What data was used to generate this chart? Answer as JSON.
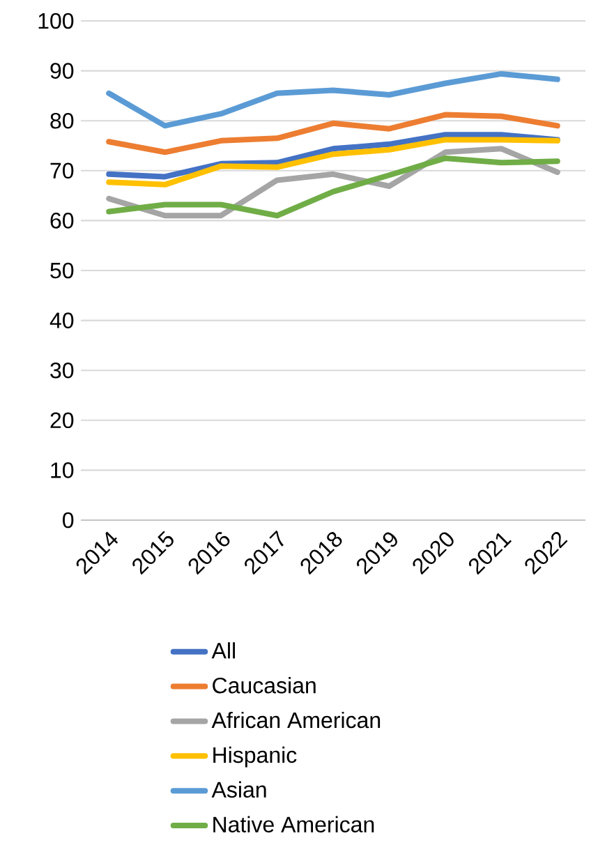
{
  "chart_data": {
    "type": "line",
    "categories": [
      "2014",
      "2015",
      "2016",
      "2017",
      "2018",
      "2019",
      "2020",
      "2021",
      "2022"
    ],
    "series": [
      {
        "name": "All",
        "color": "#4472c4",
        "values": [
          69.3,
          68.8,
          71.4,
          71.6,
          74.4,
          75.3,
          77.2,
          77.2,
          76.2
        ]
      },
      {
        "name": "Caucasian",
        "color": "#ed7d31",
        "values": [
          75.8,
          73.7,
          76.0,
          76.5,
          79.5,
          78.4,
          81.2,
          80.9,
          79.0
        ]
      },
      {
        "name": "African American",
        "color": "#a5a5a5",
        "values": [
          64.4,
          61.0,
          61.0,
          68.1,
          69.3,
          66.9,
          73.7,
          74.4,
          69.7
        ]
      },
      {
        "name": "Hispanic",
        "color": "#ffc000",
        "values": [
          67.7,
          67.2,
          70.9,
          70.7,
          73.3,
          74.2,
          76.2,
          76.2,
          76.0
        ]
      },
      {
        "name": "Asian",
        "color": "#5b9bd5",
        "values": [
          85.5,
          79.0,
          81.4,
          85.5,
          86.1,
          85.2,
          87.5,
          89.4,
          88.3
        ]
      },
      {
        "name": "Native American",
        "color": "#70ad47",
        "values": [
          61.8,
          63.2,
          63.2,
          61.0,
          65.8,
          69.1,
          72.5,
          71.6,
          71.9
        ]
      }
    ],
    "ylim": [
      0,
      100
    ],
    "yticks": [
      0,
      10,
      20,
      30,
      40,
      50,
      60,
      70,
      80,
      90,
      100
    ],
    "grid": "y",
    "legend": "bottom",
    "line_style": "solid"
  }
}
